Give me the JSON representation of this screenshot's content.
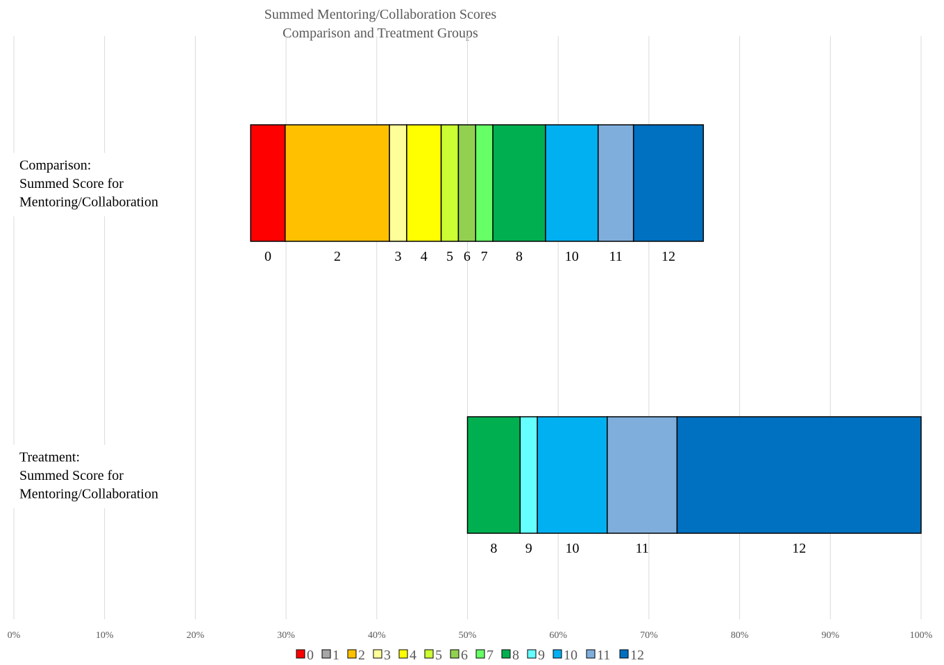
{
  "chart_data": {
    "type": "bar",
    "orientation": "horizontal",
    "stacked": true,
    "title": [
      "Summed Mentoring/Collaboration Scores",
      "Comparison and Treatment Groups"
    ],
    "xlabel": "",
    "ylabel": "",
    "xlim": [
      0,
      100
    ],
    "x_ticks": [
      "0%",
      "10%",
      "20%",
      "30%",
      "40%",
      "50%",
      "60%",
      "70%",
      "80%",
      "90%",
      "100%"
    ],
    "grid": true,
    "legend_placement": "bottom",
    "score_colors": {
      "0": "#ff0000",
      "1": "#a6a6a6",
      "2": "#ffc000",
      "3": "#ffff99",
      "4": "#ffff00",
      "5": "#ccff33",
      "6": "#92d050",
      "7": "#66ff66",
      "8": "#00b050",
      "9": "#66ffff",
      "10": "#00b0f0",
      "11": "#7faedc",
      "12": "#0070c0"
    },
    "legend": [
      "0",
      "1",
      "2",
      "3",
      "4",
      "5",
      "6",
      "7",
      "8",
      "9",
      "10",
      "11",
      "12"
    ],
    "bars": [
      {
        "label": [
          "Comparison:",
          "Summed Score for",
          "Mentoring/Collaboration"
        ],
        "start": 26.1,
        "segments": [
          {
            "score": "0",
            "start": 26.1,
            "end": 29.9
          },
          {
            "score": "2",
            "start": 29.9,
            "end": 41.4
          },
          {
            "score": "3",
            "start": 41.4,
            "end": 43.3
          },
          {
            "score": "4",
            "start": 43.3,
            "end": 47.1
          },
          {
            "score": "5",
            "start": 47.1,
            "end": 49.0
          },
          {
            "score": "6",
            "start": 49.0,
            "end": 50.9
          },
          {
            "score": "7",
            "start": 50.9,
            "end": 52.8
          },
          {
            "score": "8",
            "start": 52.8,
            "end": 58.6
          },
          {
            "score": "10",
            "start": 58.6,
            "end": 64.4
          },
          {
            "score": "11",
            "start": 64.4,
            "end": 68.3
          },
          {
            "score": "12",
            "start": 68.3,
            "end": 76.0
          }
        ]
      },
      {
        "label": [
          "Treatment:",
          "Summed Score for",
          "Mentoring/Collaboration"
        ],
        "start": 50.0,
        "segments": [
          {
            "score": "8",
            "start": 50.0,
            "end": 55.8
          },
          {
            "score": "9",
            "start": 55.8,
            "end": 57.7
          },
          {
            "score": "10",
            "start": 57.7,
            "end": 65.4
          },
          {
            "score": "11",
            "start": 65.4,
            "end": 73.1
          },
          {
            "score": "12",
            "start": 73.1,
            "end": 100.0
          }
        ]
      }
    ]
  }
}
